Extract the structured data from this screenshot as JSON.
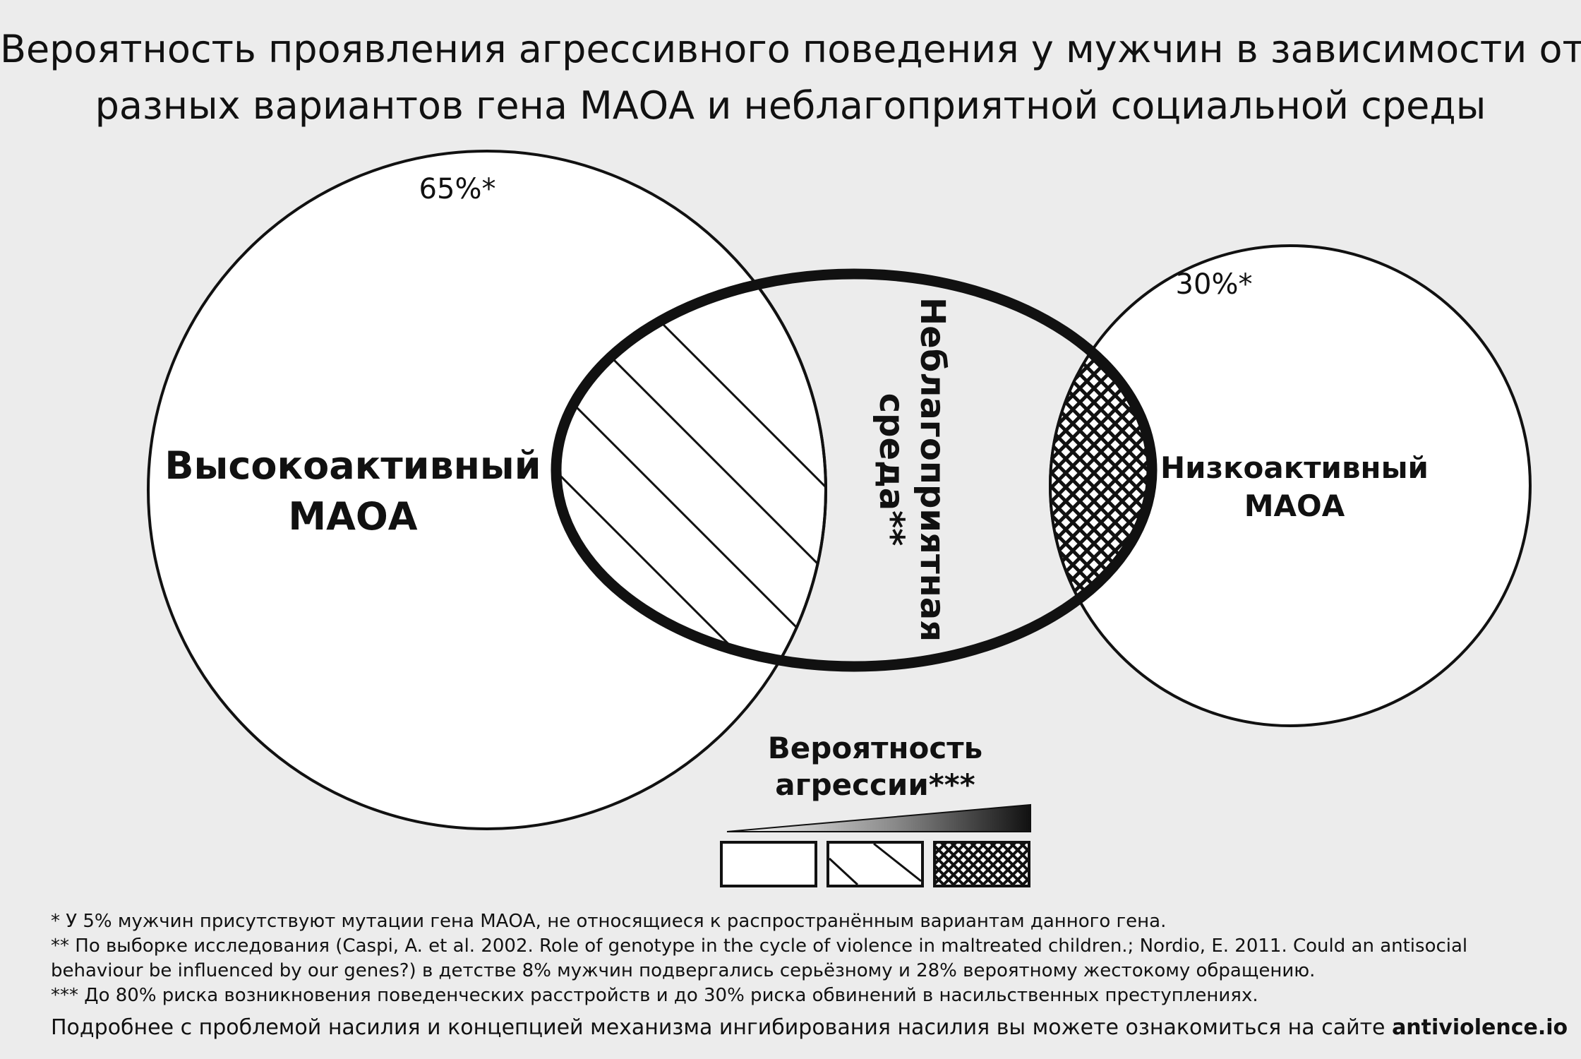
{
  "title": {
    "line1": "Вероятность проявления агрессивного поведения у мужчин в зависимости от",
    "line2": "разных вариантов гена МАОА и неблагоприятной социальной среды"
  },
  "diagram": {
    "high_maoa": {
      "percent": "65%*",
      "label_line1": "Высокоактивный",
      "label_line2": "МАОА"
    },
    "low_maoa": {
      "percent": "30%*",
      "label_line1": "Низкоактивный",
      "label_line2": "МАОА"
    },
    "environment": {
      "label_line1": "Неблагоприятная",
      "label_line2": "среда**"
    }
  },
  "legend": {
    "title_line1": "Вероятность",
    "title_line2": "агрессии***",
    "fill_colors": [
      "#ffffff",
      "#555555",
      "#111111"
    ]
  },
  "footnotes": {
    "note1": "* У 5% мужчин присутствуют мутации гена МАОА, не относящиеся к распространённым вариантам данного гена.",
    "note2": "** По выборке исследования (Caspi, A. et al. 2002. Role of genotype in the cycle of violence in maltreated children.; Nordio, E. 2011. Could an antisocial behaviour be influenced by our genes?) в детстве 8% мужчин подвергались серьёзному и 28% вероятному жестокому обращению.",
    "note3": "*** До 80% риска возникновения поведенческих расстройств и до 30% риска обвинений в насильственных преступлениях.",
    "more_text": "Подробнее с проблемой насилия и концепцией механизма ингибирования насилия вы можете ознакомиться на сайте ",
    "site": "antiviolence.io"
  }
}
